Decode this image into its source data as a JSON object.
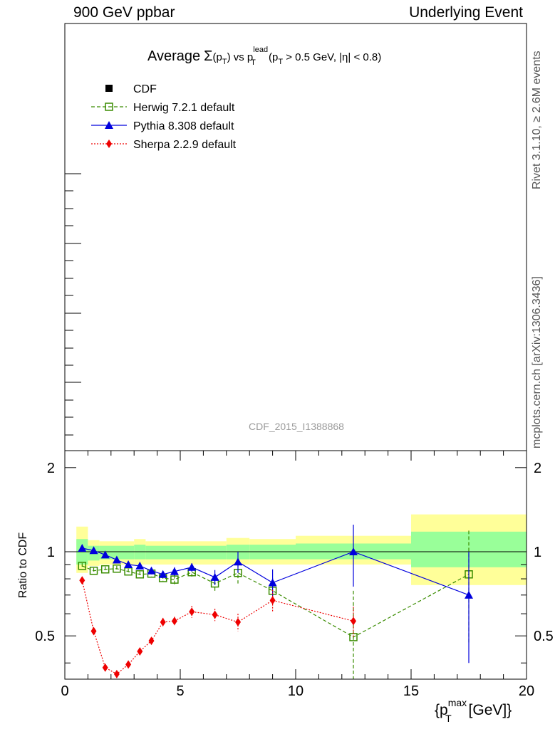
{
  "header": {
    "left": "900 GeV ppbar",
    "right": "Underlying Event"
  },
  "side": {
    "rivet": "Rivet 3.1.10, ≥ 2.6M events",
    "mcplots": "mcplots.cern.ch [arXiv:1306.3436]"
  },
  "chart_data": [
    {
      "type": "line",
      "title_parts": {
        "average": "Average",
        "sigma": "Σ",
        "sigma_arg_open": "(p",
        "sigma_arg_sub": "T",
        "sigma_arg_close": ")",
        "vs": " vs p",
        "vs_sup": "lead",
        "vs_sub": "T",
        "cut_open": " (p",
        "cut_sub": "T",
        "cut_rest": " > 0.5 GeV, |η| < 0.8)"
      },
      "watermark": "CDF_2015_I1388868",
      "legend": [
        {
          "name": "CDF",
          "color": "#000000",
          "marker": "square-filled",
          "line": "none"
        },
        {
          "name": "Herwig 7.2.1 default",
          "color": "#3a8c00",
          "marker": "square-open",
          "line": "dashed"
        },
        {
          "name": "Pythia 8.308 default",
          "color": "#0000dd",
          "marker": "triangle",
          "line": "solid"
        },
        {
          "name": "Sherpa 2.2.9 default",
          "color": "#ee0000",
          "marker": "diamond",
          "line": "dotted"
        }
      ],
      "legend_position": "top-left"
    },
    {
      "type": "line",
      "ylabel": "Ratio to CDF",
      "xlabel_parts": {
        "open": "{p",
        "sup": "max",
        "sub": "T",
        "close": " [GeV]}"
      },
      "xlim": [
        0,
        20
      ],
      "ylim": [
        0.35,
        2.3
      ],
      "y_scale": "log",
      "xticks": [
        0,
        5,
        10,
        15,
        20
      ],
      "yticks": [
        0.5,
        1,
        2
      ],
      "reference": 1,
      "bins": [
        {
          "lo": 0.5,
          "hi": 1.0,
          "inner": [
            0.9,
            1.11
          ],
          "outer": [
            0.84,
            1.23
          ]
        },
        {
          "lo": 1.0,
          "hi": 1.5,
          "inner": [
            0.93,
            1.05
          ],
          "outer": [
            0.89,
            1.1
          ]
        },
        {
          "lo": 1.5,
          "hi": 3.0,
          "inner": [
            0.94,
            1.05
          ],
          "outer": [
            0.9,
            1.09
          ]
        },
        {
          "lo": 3.0,
          "hi": 3.5,
          "inner": [
            0.94,
            1.06
          ],
          "outer": [
            0.9,
            1.11
          ]
        },
        {
          "lo": 3.5,
          "hi": 7.0,
          "inner": [
            0.94,
            1.05
          ],
          "outer": [
            0.9,
            1.09
          ]
        },
        {
          "lo": 7.0,
          "hi": 8.0,
          "inner": [
            0.94,
            1.06
          ],
          "outer": [
            0.9,
            1.12
          ]
        },
        {
          "lo": 8.0,
          "hi": 10.0,
          "inner": [
            0.94,
            1.06
          ],
          "outer": [
            0.9,
            1.11
          ]
        },
        {
          "lo": 10.0,
          "hi": 15.0,
          "inner": [
            0.94,
            1.07
          ],
          "outer": [
            0.9,
            1.14
          ]
        },
        {
          "lo": 15.0,
          "hi": 20.0,
          "inner": [
            0.88,
            1.18
          ],
          "outer": [
            0.76,
            1.36
          ]
        }
      ],
      "series": [
        {
          "name": "Herwig 7.2.1 default",
          "x": [
            0.75,
            1.25,
            1.75,
            2.25,
            2.75,
            3.25,
            3.75,
            4.25,
            4.75,
            5.5,
            6.5,
            7.5,
            9.0,
            12.5,
            17.5
          ],
          "y": [
            0.89,
            0.855,
            0.865,
            0.87,
            0.85,
            0.83,
            0.835,
            0.805,
            0.795,
            0.845,
            0.77,
            0.84,
            0.725,
            0.495,
            0.83
          ],
          "err": [
            0.02,
            0.02,
            0.02,
            0.02,
            0.02,
            0.02,
            0.02,
            0.02,
            0.03,
            0.03,
            0.05,
            0.07,
            0.08,
            0.23,
            0.36
          ]
        },
        {
          "name": "Pythia 8.308 default",
          "x": [
            0.75,
            1.25,
            1.75,
            2.25,
            2.75,
            3.25,
            3.75,
            4.25,
            4.75,
            5.5,
            6.5,
            7.5,
            9.0,
            12.5,
            17.5
          ],
          "y": [
            1.03,
            1.01,
            0.975,
            0.935,
            0.9,
            0.89,
            0.855,
            0.83,
            0.85,
            0.88,
            0.81,
            0.92,
            0.775,
            1.0,
            0.7
          ],
          "err": [
            0.01,
            0.01,
            0.01,
            0.01,
            0.01,
            0.01,
            0.02,
            0.02,
            0.03,
            0.03,
            0.05,
            0.08,
            0.09,
            0.25,
            0.3
          ]
        },
        {
          "name": "Sherpa 2.2.9 default",
          "x": [
            0.75,
            1.25,
            1.75,
            2.25,
            2.75,
            3.25,
            3.75,
            4.25,
            4.75,
            5.5,
            6.5,
            7.5,
            9.0,
            12.5
          ],
          "y": [
            0.79,
            0.52,
            0.385,
            0.365,
            0.395,
            0.44,
            0.48,
            0.56,
            0.565,
            0.61,
            0.595,
            0.56,
            0.67,
            0.565
          ],
          "err": [
            0.01,
            0.01,
            0.01,
            0.01,
            0.01,
            0.01,
            0.01,
            0.02,
            0.02,
            0.03,
            0.03,
            0.04,
            0.06,
            0.07
          ]
        }
      ]
    }
  ]
}
